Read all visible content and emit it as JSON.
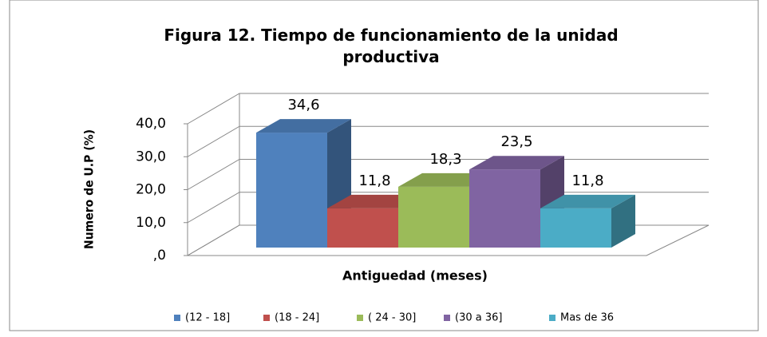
{
  "chart_data": {
    "type": "bar3d",
    "title": "Figura 12. Tiempo de funcionamiento de la unidad productiva",
    "ylabel": "Numero de U.P (%)",
    "xlabel": "Antiguedad (meses)",
    "ylim": [
      0,
      40
    ],
    "yticks": [
      {
        "value": 0,
        "label": ",0"
      },
      {
        "value": 10,
        "label": "10,0"
      },
      {
        "value": 20,
        "label": "20,0"
      },
      {
        "value": 30,
        "label": "30,0"
      },
      {
        "value": 40,
        "label": "40,0"
      }
    ],
    "grid": true,
    "legend": "bottom",
    "series": [
      {
        "name": "(12 - 18]",
        "color": "#4f81bd",
        "values": [
          34.6
        ],
        "value_labels": [
          "34,6"
        ]
      },
      {
        "name": "(18 - 24]",
        "color": "#c0504d",
        "values": [
          11.8
        ],
        "value_labels": [
          "11,8"
        ]
      },
      {
        "name": "( 24 - 30]",
        "color": "#9bbb59",
        "values": [
          18.3
        ],
        "value_labels": [
          "18,3"
        ]
      },
      {
        "name": "(30 a 36]",
        "color": "#8064a2",
        "values": [
          23.5
        ],
        "value_labels": [
          "23,5"
        ]
      },
      {
        "name": "Mas de 36",
        "color": "#4bacc6",
        "values": [
          11.8
        ],
        "value_labels": [
          "11,8"
        ]
      }
    ]
  }
}
